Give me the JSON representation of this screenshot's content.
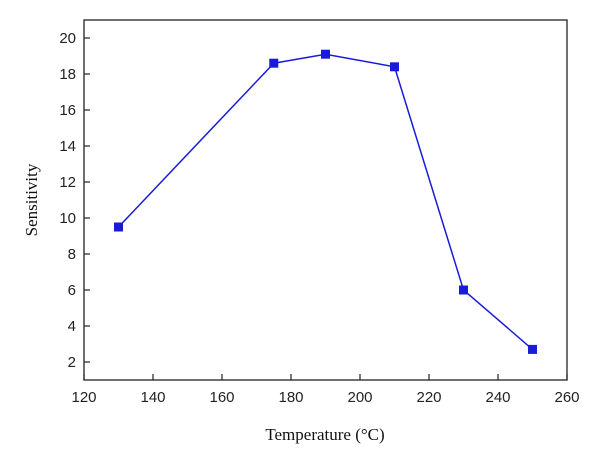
{
  "chart_data": {
    "type": "line",
    "title": "",
    "xlabel": "Temperature (°C)",
    "ylabel": "Sensitivity",
    "xlim": [
      120,
      260
    ],
    "ylim": [
      1,
      21
    ],
    "x_ticks": [
      120,
      140,
      160,
      180,
      200,
      220,
      240,
      260
    ],
    "y_ticks": [
      2,
      4,
      6,
      8,
      10,
      12,
      14,
      16,
      18,
      20
    ],
    "grid": false,
    "legend": "none",
    "marker": "square",
    "series": [
      {
        "x": [
          130,
          175,
          190,
          210,
          230,
          250
        ],
        "y": [
          9.5,
          18.6,
          19.1,
          18.4,
          6.0,
          2.7
        ],
        "color": "#1a1adb"
      }
    ]
  }
}
